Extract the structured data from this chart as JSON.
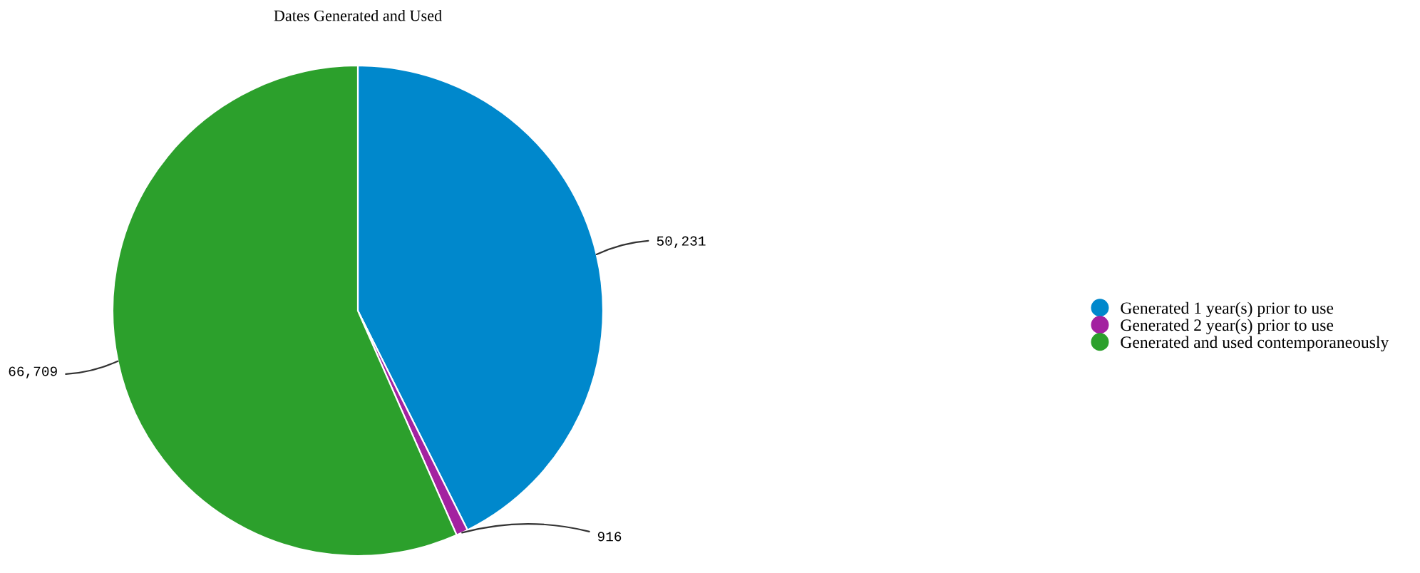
{
  "chart_data": {
    "type": "pie",
    "title": "Dates Generated and Used",
    "categories": [
      "Generated 1 year(s) prior to use",
      "Generated 2 year(s) prior to use",
      "Generated and used contemporaneously"
    ],
    "values": [
      50231,
      916,
      66709
    ],
    "colors": [
      "#0088cc",
      "#a322a0",
      "#2ca02c"
    ],
    "value_labels": [
      "50,231",
      "916",
      "66,709"
    ],
    "legend": "right"
  }
}
